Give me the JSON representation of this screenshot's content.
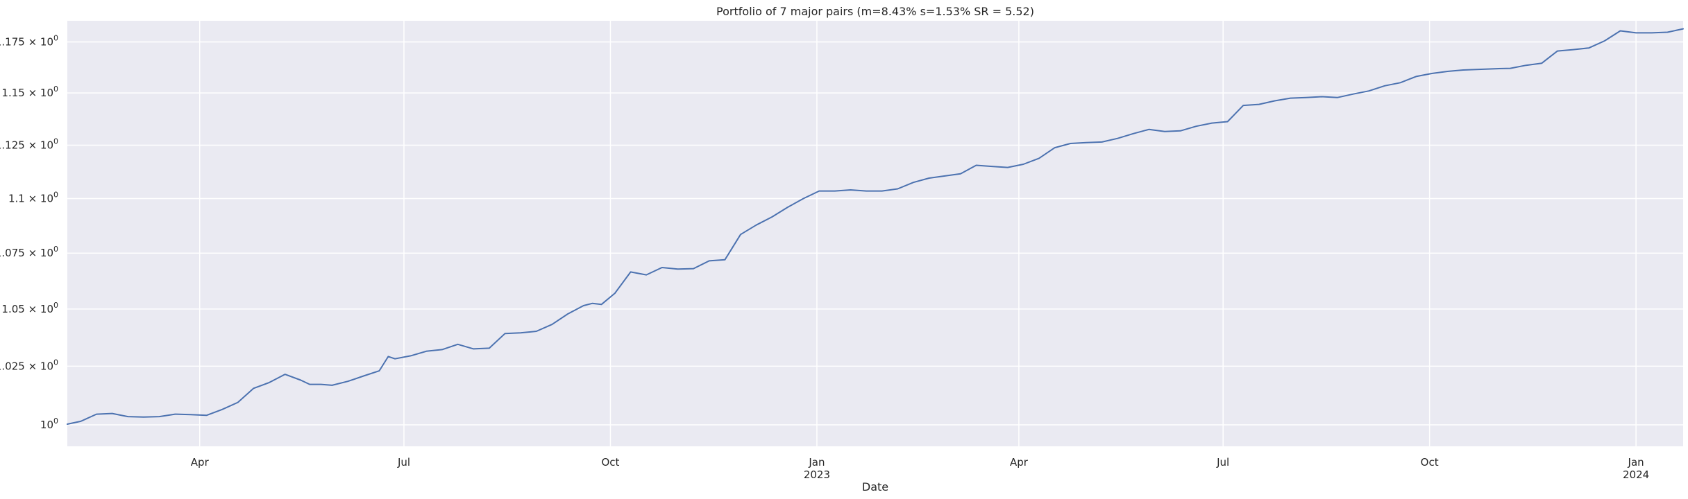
{
  "chart_data": {
    "type": "line",
    "title": "Portfolio of 7 major pairs (m=8.43% s=1.53% SR = 5.52)",
    "xlabel": "Date",
    "ylabel": "",
    "y_scale": "log",
    "grid": true,
    "x_range": [
      "2022-02-01",
      "2024-01-22"
    ],
    "ylim": [
      0.991,
      1.1855
    ],
    "x_ticks": [
      {
        "date": "2022-04-01",
        "label": "Apr",
        "sublabel": ""
      },
      {
        "date": "2022-07-01",
        "label": "Jul",
        "sublabel": ""
      },
      {
        "date": "2022-10-01",
        "label": "Oct",
        "sublabel": ""
      },
      {
        "date": "2023-01-01",
        "label": "Jan",
        "sublabel": "2023"
      },
      {
        "date": "2023-04-01",
        "label": "Apr",
        "sublabel": ""
      },
      {
        "date": "2023-07-01",
        "label": "Jul",
        "sublabel": ""
      },
      {
        "date": "2023-10-01",
        "label": "Oct",
        "sublabel": ""
      },
      {
        "date": "2024-01-01",
        "label": "Jan",
        "sublabel": "2024"
      }
    ],
    "y_ticks": [
      {
        "value": 1.0,
        "label": "10",
        "exp": "0"
      },
      {
        "value": 1.025,
        "label": "1.025 × 10",
        "exp": "0"
      },
      {
        "value": 1.05,
        "label": "1.05 × 10",
        "exp": "0"
      },
      {
        "value": 1.075,
        "label": "1.075 × 10",
        "exp": "0"
      },
      {
        "value": 1.1,
        "label": "1.1 × 10",
        "exp": "0"
      },
      {
        "value": 1.125,
        "label": "1.125 × 10",
        "exp": "0"
      },
      {
        "value": 1.15,
        "label": "1.15 × 10",
        "exp": "0"
      },
      {
        "value": 1.175,
        "label": "1.175 × 10",
        "exp": "0"
      }
    ],
    "series": [
      {
        "name": "",
        "color": "#4c72b0",
        "x": [
          "2022-02-01",
          "2022-02-07",
          "2022-02-14",
          "2022-02-21",
          "2022-02-28",
          "2022-03-07",
          "2022-03-14",
          "2022-03-21",
          "2022-03-28",
          "2022-04-04",
          "2022-04-11",
          "2022-04-18",
          "2022-04-25",
          "2022-05-02",
          "2022-05-09",
          "2022-05-16",
          "2022-05-20",
          "2022-05-25",
          "2022-05-30",
          "2022-06-06",
          "2022-06-13",
          "2022-06-20",
          "2022-06-24",
          "2022-06-27",
          "2022-07-04",
          "2022-07-11",
          "2022-07-18",
          "2022-07-25",
          "2022-08-01",
          "2022-08-08",
          "2022-08-15",
          "2022-08-22",
          "2022-08-29",
          "2022-09-05",
          "2022-09-12",
          "2022-09-19",
          "2022-09-23",
          "2022-09-27",
          "2022-10-03",
          "2022-10-10",
          "2022-10-17",
          "2022-10-24",
          "2022-10-31",
          "2022-11-07",
          "2022-11-14",
          "2022-11-21",
          "2022-11-28",
          "2022-12-05",
          "2022-12-12",
          "2022-12-19",
          "2022-12-26",
          "2023-01-02",
          "2023-01-09",
          "2023-01-16",
          "2023-01-23",
          "2023-01-30",
          "2023-02-06",
          "2023-02-13",
          "2023-02-20",
          "2023-02-27",
          "2023-03-06",
          "2023-03-13",
          "2023-03-20",
          "2023-03-27",
          "2023-04-03",
          "2023-04-10",
          "2023-04-17",
          "2023-04-24",
          "2023-05-01",
          "2023-05-08",
          "2023-05-15",
          "2023-05-22",
          "2023-05-29",
          "2023-06-05",
          "2023-06-12",
          "2023-06-19",
          "2023-06-26",
          "2023-07-03",
          "2023-07-10",
          "2023-07-17",
          "2023-07-24",
          "2023-07-31",
          "2023-08-07",
          "2023-08-14",
          "2023-08-21",
          "2023-08-28",
          "2023-09-04",
          "2023-09-11",
          "2023-09-18",
          "2023-09-25",
          "2023-10-02",
          "2023-10-09",
          "2023-10-16",
          "2023-10-23",
          "2023-10-30",
          "2023-11-06",
          "2023-11-13",
          "2023-11-20",
          "2023-11-27",
          "2023-12-04",
          "2023-12-11",
          "2023-12-18",
          "2023-12-25",
          "2024-01-01",
          "2024-01-08",
          "2024-01-15",
          "2024-01-22"
        ],
        "values": [
          1.0003,
          1.0015,
          1.0045,
          1.0048,
          1.0035,
          1.0033,
          1.0035,
          1.0045,
          1.0043,
          1.004,
          1.0065,
          1.0095,
          1.0155,
          1.018,
          1.0215,
          1.019,
          1.0172,
          1.0172,
          1.0168,
          1.0185,
          1.0208,
          1.023,
          1.0292,
          1.0282,
          1.0295,
          1.0315,
          1.0322,
          1.0345,
          1.0325,
          1.0328,
          1.0392,
          1.0395,
          1.0402,
          1.0432,
          1.0478,
          1.0515,
          1.0525,
          1.052,
          1.057,
          1.0665,
          1.0652,
          1.0685,
          1.0678,
          1.068,
          1.0715,
          1.072,
          1.0835,
          1.0878,
          1.0915,
          1.096,
          1.1,
          1.1035,
          1.1035,
          1.104,
          1.1035,
          1.1035,
          1.1045,
          1.1075,
          1.1095,
          1.1105,
          1.1115,
          1.1155,
          1.115,
          1.1145,
          1.116,
          1.1188,
          1.1238,
          1.1258,
          1.1262,
          1.1265,
          1.1282,
          1.1305,
          1.1325,
          1.1315,
          1.1318,
          1.134,
          1.1355,
          1.1362,
          1.144,
          1.1445,
          1.1462,
          1.1475,
          1.1478,
          1.1482,
          1.1478,
          1.1495,
          1.151,
          1.1535,
          1.155,
          1.158,
          1.1595,
          1.1605,
          1.1612,
          1.1615,
          1.1618,
          1.162,
          1.1635,
          1.1645,
          1.1705,
          1.1712,
          1.172,
          1.1755,
          1.1805,
          1.1795,
          1.1795,
          1.1798,
          1.1815
        ]
      }
    ]
  }
}
